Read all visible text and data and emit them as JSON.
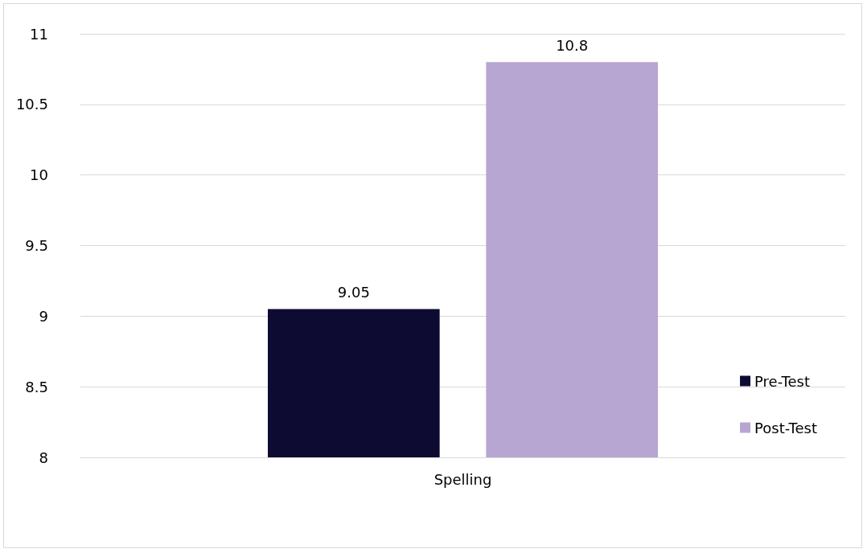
{
  "chart_data": {
    "type": "bar",
    "categories": [
      "Spelling"
    ],
    "series": [
      {
        "name": "Pre-Test",
        "color": "#0e0b33",
        "values": [
          9.05
        ]
      },
      {
        "name": "Post-Test",
        "color": "#b8a6d2",
        "values": [
          10.8
        ]
      }
    ],
    "ylim": [
      8,
      11
    ],
    "yticks": [
      8,
      8.5,
      9,
      9.5,
      10,
      10.5,
      11
    ],
    "grid": "y",
    "legend": "right",
    "data_labels": true
  }
}
